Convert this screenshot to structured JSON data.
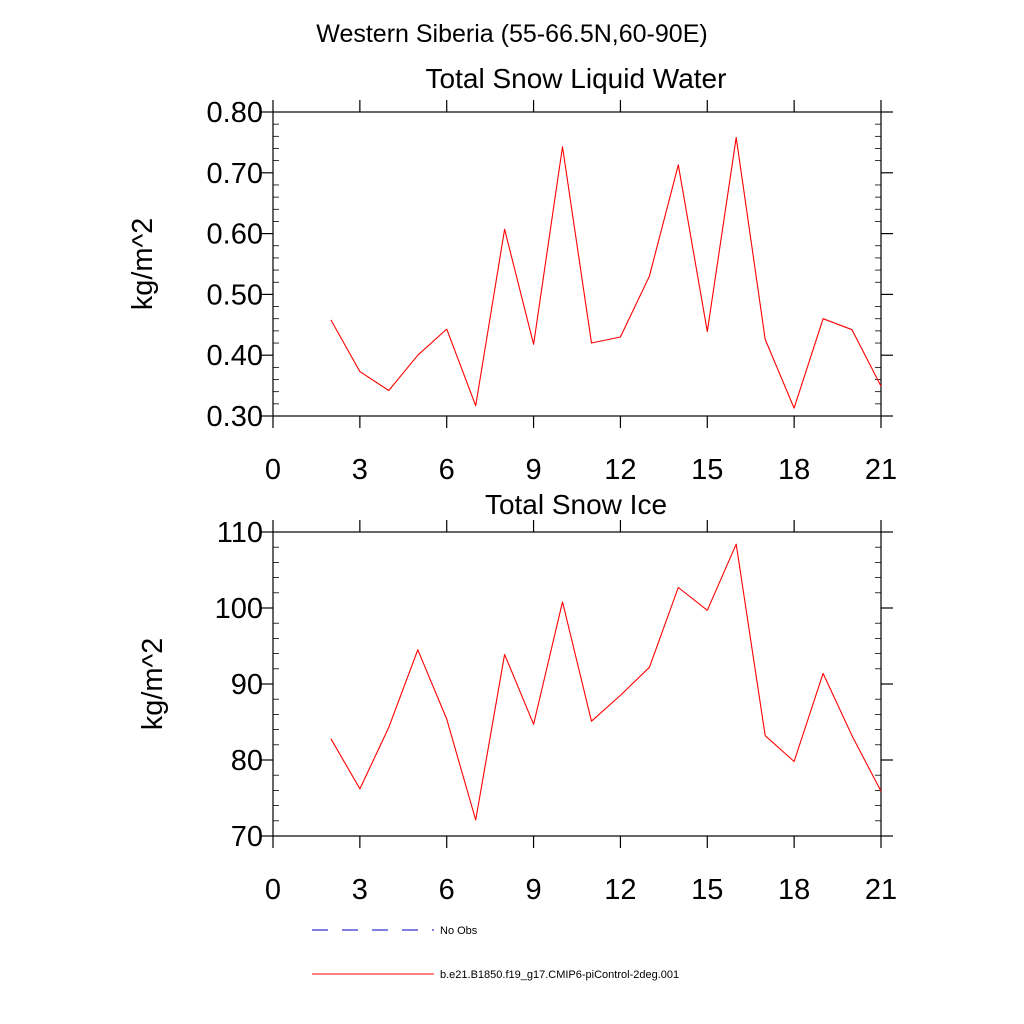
{
  "figure": {
    "title": "Western Siberia (55-66.5N,60-90E)"
  },
  "colors": {
    "model_line": "#ff0000",
    "obs_line": "#0000c0",
    "axis": "#000000"
  },
  "legend": {
    "items": [
      {
        "label": "No Obs",
        "style": "dashed",
        "color": "#0000c0"
      },
      {
        "label": "b.e21.B1850.f19_g17.CMIP6-piControl-2deg.001",
        "style": "solid",
        "color": "#ff0000"
      }
    ]
  },
  "chart_data": [
    {
      "type": "line",
      "title": "Total Snow Liquid Water",
      "xlabel": "",
      "ylabel": "kg/m^2",
      "xlim": [
        0,
        21
      ],
      "ylim": [
        0.3,
        0.8
      ],
      "x_ticks": [
        0,
        3,
        6,
        9,
        12,
        15,
        18,
        21
      ],
      "y_ticks": [
        0.3,
        0.4,
        0.5,
        0.6,
        0.7,
        0.8
      ],
      "y_tick_labels": [
        "0.30",
        "0.40",
        "0.50",
        "0.60",
        "0.70",
        "0.80"
      ],
      "grid": false,
      "series": [
        {
          "name": "b.e21.B1850.f19_g17.CMIP6-piControl-2deg.001",
          "color": "#ff0000",
          "x": [
            2,
            3,
            4,
            5,
            6,
            7,
            8,
            9,
            10,
            11,
            12,
            13,
            14,
            15,
            16,
            17,
            18,
            19,
            20,
            21
          ],
          "values": [
            0.458,
            0.373,
            0.342,
            0.4,
            0.443,
            0.317,
            0.607,
            0.418,
            0.743,
            0.42,
            0.43,
            0.53,
            0.713,
            0.439,
            0.758,
            0.426,
            0.313,
            0.46,
            0.442,
            0.349
          ]
        }
      ]
    },
    {
      "type": "line",
      "title": "Total Snow Ice",
      "xlabel": "",
      "ylabel": "kg/m^2",
      "xlim": [
        0,
        21
      ],
      "ylim": [
        70,
        110
      ],
      "x_ticks": [
        0,
        3,
        6,
        9,
        12,
        15,
        18,
        21
      ],
      "y_ticks": [
        70,
        80,
        90,
        100,
        110
      ],
      "y_tick_labels": [
        "70",
        "80",
        "90",
        "100",
        "110"
      ],
      "grid": false,
      "series": [
        {
          "name": "b.e21.B1850.f19_g17.CMIP6-piControl-2deg.001",
          "color": "#ff0000",
          "x": [
            2,
            3,
            4,
            5,
            6,
            7,
            8,
            9,
            10,
            11,
            12,
            13,
            14,
            15,
            16,
            17,
            18,
            19,
            20,
            21
          ],
          "values": [
            82.8,
            76.2,
            84.3,
            94.5,
            85.4,
            72.1,
            93.9,
            84.7,
            100.8,
            85.1,
            88.5,
            92.2,
            102.7,
            99.7,
            108.4,
            83.2,
            79.8,
            91.4,
            83.2,
            75.9
          ]
        }
      ]
    }
  ]
}
